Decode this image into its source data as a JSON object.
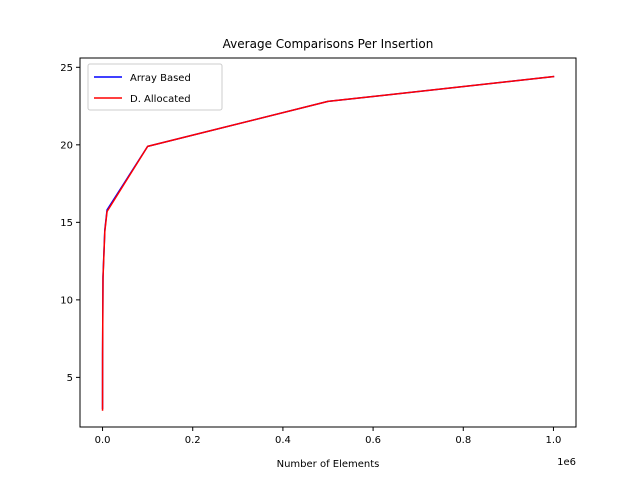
{
  "chart_data": {
    "type": "line",
    "title": "Average Comparisons Per Insertion",
    "xlabel": "Number of Elements",
    "ylabel": "",
    "x_offset_label": "1e6",
    "xlim": [
      -50000,
      1050000
    ],
    "ylim": [
      1.8,
      25.6
    ],
    "xticks": [
      0,
      200000,
      400000,
      600000,
      800000,
      1000000
    ],
    "xtick_labels": [
      "0.0",
      "0.2",
      "0.4",
      "0.6",
      "0.8",
      "1.0"
    ],
    "yticks": [
      5,
      10,
      15,
      20,
      25
    ],
    "ytick_labels": [
      "5",
      "10",
      "15",
      "20",
      "25"
    ],
    "grid": false,
    "legend_position": "top-left",
    "x": [
      10,
      100,
      1000,
      5000,
      10000,
      100000,
      500000,
      1000000
    ],
    "series": [
      {
        "name": "Array Based",
        "color": "#0000ff",
        "values": [
          3.0,
          6.5,
          11.5,
          14.5,
          15.8,
          19.9,
          22.8,
          24.4
        ]
      },
      {
        "name": "D. Allocated",
        "color": "#ff0000",
        "values": [
          2.9,
          6.4,
          11.4,
          14.4,
          15.7,
          19.9,
          22.8,
          24.4
        ]
      }
    ]
  }
}
